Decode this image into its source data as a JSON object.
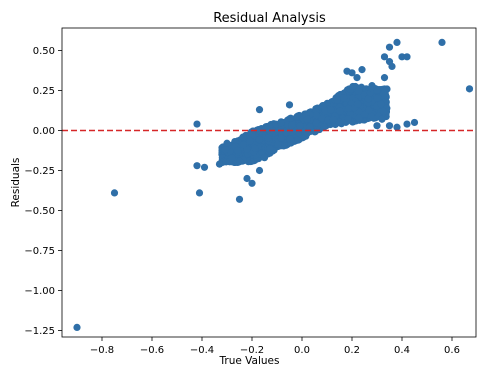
{
  "chart_data": {
    "type": "scatter",
    "title": "Residual Analysis",
    "xlabel": "True Values",
    "ylabel": "Residuals",
    "xlim": [
      -0.96,
      0.7
    ],
    "ylim": [
      -1.29,
      0.64
    ],
    "xticks": [
      -0.8,
      -0.6,
      -0.4,
      -0.2,
      0.0,
      0.2,
      0.4,
      0.6
    ],
    "xtick_labels": [
      "−0.8",
      "−0.6",
      "−0.4",
      "−0.2",
      "0.0",
      "0.2",
      "0.4",
      "0.6"
    ],
    "yticks": [
      0.5,
      0.25,
      0.0,
      -0.25,
      -0.5,
      -0.75,
      -1.0,
      -1.25
    ],
    "ytick_labels": [
      "0.50",
      "0.25",
      "0.00",
      "−0.25",
      "−0.50",
      "−0.75",
      "−1.00",
      "−1.25"
    ],
    "point_color": "#2f6fa8",
    "reference_line": {
      "y": 0.0,
      "color": "#d62728",
      "style": "dashed"
    },
    "outliers": [
      [
        -0.9,
        -1.23
      ],
      [
        -0.75,
        -0.39
      ],
      [
        -0.42,
        0.04
      ],
      [
        -0.42,
        -0.22
      ],
      [
        -0.41,
        -0.39
      ],
      [
        -0.39,
        -0.23
      ],
      [
        -0.33,
        -0.21
      ],
      [
        -0.28,
        -0.17
      ],
      [
        -0.25,
        -0.43
      ],
      [
        -0.22,
        -0.3
      ],
      [
        -0.2,
        -0.33
      ],
      [
        -0.17,
        -0.25
      ],
      [
        -0.17,
        0.13
      ],
      [
        -0.15,
        -0.17
      ],
      [
        -0.05,
        0.16
      ],
      [
        0.18,
        0.37
      ],
      [
        0.2,
        0.36
      ],
      [
        0.22,
        0.33
      ],
      [
        0.3,
        0.25
      ],
      [
        0.33,
        0.33
      ],
      [
        0.35,
        0.43
      ],
      [
        0.35,
        0.52
      ],
      [
        0.38,
        0.55
      ],
      [
        0.36,
        0.4
      ],
      [
        0.33,
        0.46
      ],
      [
        0.4,
        0.46
      ],
      [
        0.42,
        0.46
      ],
      [
        0.56,
        0.55
      ],
      [
        0.67,
        0.26
      ],
      [
        0.3,
        0.2
      ],
      [
        0.32,
        0.07
      ],
      [
        0.35,
        0.03
      ],
      [
        0.38,
        0.02
      ],
      [
        0.42,
        0.04
      ],
      [
        0.45,
        0.05
      ],
      [
        0.3,
        0.03
      ],
      [
        0.25,
        0.1
      ],
      [
        0.28,
        0.28
      ],
      [
        0.24,
        0.38
      ],
      [
        -0.3,
        -0.08
      ]
    ],
    "main_cloud": {
      "description_ranges": {
        "x_min": -0.32,
        "x_max": 0.34,
        "segments": [
          {
            "x": -0.3,
            "y_low": -0.2,
            "y_high": -0.1
          },
          {
            "x": -0.2,
            "y_low": -0.2,
            "y_high": 0.0
          },
          {
            "x": -0.1,
            "y_low": -0.12,
            "y_high": 0.05
          },
          {
            "x": 0.0,
            "y_low": -0.05,
            "y_high": 0.1
          },
          {
            "x": 0.1,
            "y_low": 0.03,
            "y_high": 0.17
          },
          {
            "x": 0.2,
            "y_low": 0.05,
            "y_high": 0.28
          },
          {
            "x": 0.3,
            "y_low": 0.08,
            "y_high": 0.26
          }
        ]
      }
    }
  }
}
